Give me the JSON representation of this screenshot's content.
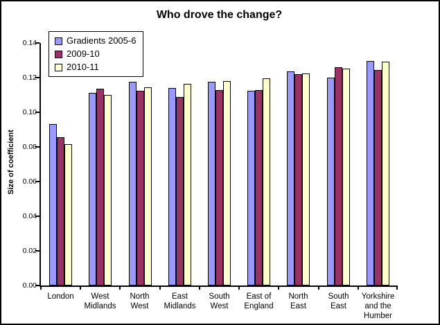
{
  "window": {
    "background": "#FFFFFF",
    "border_color": "#000000"
  },
  "chart_data": {
    "type": "bar",
    "title": "Who drove the change?",
    "xlabel": "",
    "ylabel": "Size of coefficient",
    "ylim": [
      0,
      0.14
    ],
    "ytick_step": 0.02,
    "ytick_labels": [
      "0.00",
      "0.02",
      "0.04",
      "0.06",
      "0.08",
      "0.10",
      "0.12",
      "0.14"
    ],
    "grid": false,
    "legend_position": "top-left-inside",
    "categories": [
      "London",
      "West Midlands",
      "North West",
      "East Midlands",
      "South West",
      "East of England",
      "North East",
      "South East",
      "Yorkshire and the Humber"
    ],
    "category_label_lines": [
      [
        "London"
      ],
      [
        "West",
        "Midlands"
      ],
      [
        "North",
        "West"
      ],
      [
        "East",
        "Midlands"
      ],
      [
        "South",
        "West"
      ],
      [
        "East of",
        "England"
      ],
      [
        "North",
        "East"
      ],
      [
        "South",
        "East"
      ],
      [
        "Yorkshire",
        "and the",
        "Humber"
      ]
    ],
    "series": [
      {
        "name": "Gradients 2005-6",
        "color": "#9999FF",
        "values": [
          0.093,
          0.111,
          0.1175,
          0.114,
          0.1175,
          0.1125,
          0.1235,
          0.12,
          0.1295
        ]
      },
      {
        "name": "2009-10",
        "color": "#993366",
        "values": [
          0.0855,
          0.1135,
          0.1125,
          0.109,
          0.113,
          0.113,
          0.122,
          0.126,
          0.1245
        ]
      },
      {
        "name": "2010-11",
        "color": "#FFFFCC",
        "values": [
          0.0815,
          0.11,
          0.1145,
          0.1165,
          0.118,
          0.1195,
          0.1225,
          0.125,
          0.129
        ]
      }
    ]
  }
}
